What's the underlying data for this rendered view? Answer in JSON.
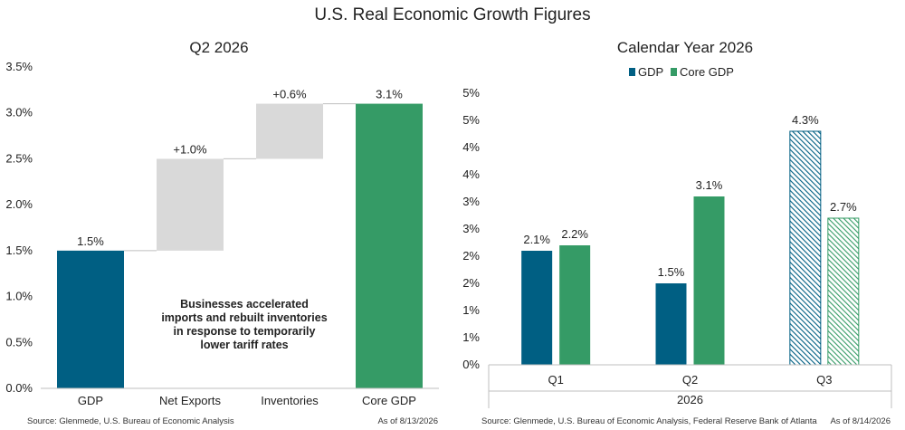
{
  "page_title": "U.S. Real Economic Growth Figures",
  "colors": {
    "gdp": "#005f83",
    "core_gdp": "#359b66",
    "contribution": "#d9d9d9",
    "axis": "#bfbfbf"
  },
  "chart_data": [
    {
      "type": "bar",
      "subtype": "waterfall",
      "title": "Q2 2026",
      "categories": [
        "GDP",
        "Net Exports",
        "Inventories",
        "Core GDP"
      ],
      "bars": [
        {
          "start": 0,
          "end": 1.5,
          "label": "1.5%",
          "kind": "gdp"
        },
        {
          "start": 1.5,
          "end": 2.5,
          "label": "+1.0%",
          "kind": "contribution"
        },
        {
          "start": 2.5,
          "end": 3.1,
          "label": "+0.6%",
          "kind": "contribution"
        },
        {
          "start": 0,
          "end": 3.1,
          "label": "3.1%",
          "kind": "core_gdp"
        }
      ],
      "ylim": [
        0,
        3.5
      ],
      "yticks": [
        0,
        0.5,
        1.0,
        1.5,
        2.0,
        2.5,
        3.0,
        3.5
      ],
      "ytick_labels": [
        "0.0%",
        "0.5%",
        "1.0%",
        "1.5%",
        "2.0%",
        "2.5%",
        "3.0%",
        "3.5%"
      ],
      "annotation": [
        "Businesses accelerated",
        "imports and rebuilt inventories",
        "in response to temporarily",
        "lower tariff rates"
      ],
      "source": "Source: Glenmede, U.S. Bureau of Economic Analysis",
      "as_of": "As of 8/13/2026",
      "grid": false
    },
    {
      "type": "bar",
      "title": "Calendar Year 2026",
      "categories": [
        "Q1",
        "Q2",
        "Q3"
      ],
      "xlabel": "2026",
      "series": [
        {
          "name": "GDP",
          "values": [
            2.1,
            1.5,
            4.3
          ],
          "labels": [
            "2.1%",
            "1.5%",
            "4.3%"
          ],
          "hatched": [
            false,
            false,
            true
          ]
        },
        {
          "name": "Core GDP",
          "values": [
            2.2,
            3.1,
            2.7
          ],
          "labels": [
            "2.2%",
            "3.1%",
            "2.7%"
          ],
          "hatched": [
            false,
            false,
            true
          ]
        }
      ],
      "ylim": [
        0,
        5
      ],
      "yticks": [
        0,
        0.5,
        1.0,
        1.5,
        2.0,
        2.5,
        3.0,
        3.5,
        4.0,
        4.5,
        5.0
      ],
      "ytick_labels": [
        "0%",
        "1%",
        "1%",
        "2%",
        "2%",
        "3%",
        "3%",
        "4%",
        "4%",
        "5%",
        "5%"
      ],
      "legend": "top",
      "source": "Source: Glenmede, U.S. Bureau of Economic Analysis, Federal Reserve Bank of Atlanta",
      "as_of": "As of 8/14/2026",
      "grid": false
    }
  ]
}
